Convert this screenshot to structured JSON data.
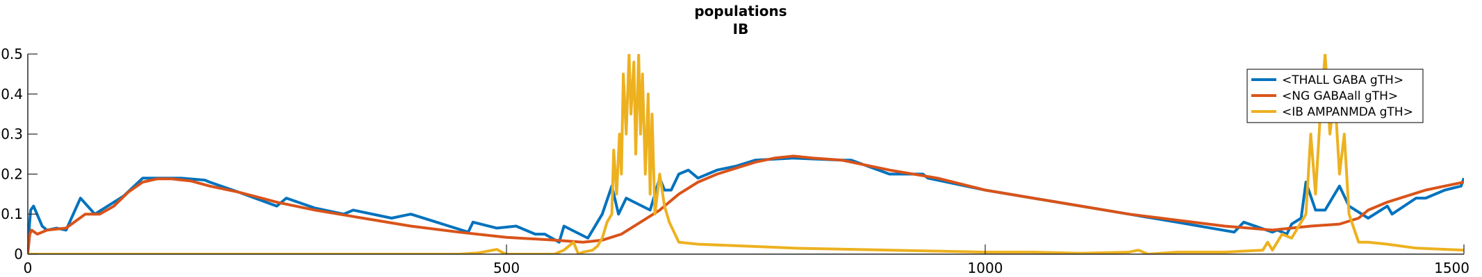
{
  "chart_data": {
    "type": "line",
    "title": "populations",
    "subtitle": "IB",
    "xlabel": "",
    "ylabel": "",
    "xlim": [
      0,
      1500
    ],
    "ylim": [
      0,
      0.5
    ],
    "x_ticks": [
      0,
      500,
      1000,
      1500
    ],
    "x_tick_labels": [
      "0",
      "500",
      "1000",
      "1500"
    ],
    "y_ticks": [
      0,
      0.1,
      0.2,
      0.3,
      0.4,
      0.5
    ],
    "y_tick_labels": [
      "0",
      "0.1",
      "0.2",
      "0.3",
      "0.4",
      "0.5"
    ],
    "grid": false,
    "legend_position": "top-right",
    "series": [
      {
        "name": "<THALL GABA gTH>",
        "color": "#0072BD",
        "x": [
          0,
          3,
          6,
          15,
          20,
          30,
          40,
          55,
          70,
          90,
          100,
          120,
          130,
          150,
          160,
          185,
          190,
          220,
          260,
          270,
          300,
          330,
          340,
          380,
          400,
          440,
          460,
          465,
          490,
          510,
          530,
          540,
          555,
          560,
          585,
          590,
          600,
          610,
          617,
          625,
          650,
          660,
          665,
          672,
          680,
          690,
          700,
          710,
          720,
          740,
          760,
          800,
          850,
          860,
          900,
          935,
          940,
          1000,
          1050,
          1100,
          1150,
          1200,
          1260,
          1270,
          1300,
          1305,
          1315,
          1320,
          1330,
          1335,
          1345,
          1355,
          1370,
          1380,
          1400,
          1420,
          1425,
          1450,
          1460,
          1480,
          1497,
          1500
        ],
        "y": [
          0.02,
          0.11,
          0.12,
          0.07,
          0.06,
          0.065,
          0.06,
          0.14,
          0.1,
          0.13,
          0.145,
          0.19,
          0.19,
          0.19,
          0.19,
          0.185,
          0.18,
          0.155,
          0.12,
          0.14,
          0.115,
          0.1,
          0.11,
          0.09,
          0.1,
          0.07,
          0.055,
          0.08,
          0.065,
          0.07,
          0.05,
          0.05,
          0.03,
          0.07,
          0.04,
          0.06,
          0.1,
          0.17,
          0.1,
          0.14,
          0.11,
          0.19,
          0.16,
          0.16,
          0.2,
          0.21,
          0.19,
          0.2,
          0.21,
          0.22,
          0.235,
          0.24,
          0.235,
          0.235,
          0.2,
          0.2,
          0.19,
          0.16,
          0.14,
          0.12,
          0.1,
          0.08,
          0.055,
          0.08,
          0.055,
          0.06,
          0.05,
          0.075,
          0.09,
          0.18,
          0.11,
          0.11,
          0.17,
          0.12,
          0.09,
          0.12,
          0.1,
          0.14,
          0.14,
          0.16,
          0.17,
          0.19
        ]
      },
      {
        "name": "<NG GABAall gTH>",
        "color": "#D95319",
        "x": [
          0,
          2,
          4,
          10,
          20,
          40,
          60,
          75,
          90,
          105,
          120,
          135,
          150,
          170,
          190,
          220,
          260,
          300,
          350,
          400,
          450,
          500,
          550,
          580,
          600,
          620,
          640,
          660,
          680,
          700,
          720,
          740,
          760,
          780,
          800,
          820,
          850,
          900,
          950,
          1000,
          1050,
          1100,
          1150,
          1200,
          1250,
          1300,
          1320,
          1340,
          1370,
          1390,
          1400,
          1420,
          1440,
          1460,
          1480,
          1500
        ],
        "y": [
          0,
          0.05,
          0.06,
          0.05,
          0.06,
          0.065,
          0.1,
          0.1,
          0.12,
          0.155,
          0.18,
          0.188,
          0.188,
          0.183,
          0.17,
          0.155,
          0.13,
          0.11,
          0.09,
          0.07,
          0.055,
          0.042,
          0.035,
          0.03,
          0.035,
          0.05,
          0.08,
          0.11,
          0.15,
          0.18,
          0.2,
          0.215,
          0.23,
          0.24,
          0.245,
          0.24,
          0.235,
          0.21,
          0.19,
          0.16,
          0.14,
          0.12,
          0.1,
          0.085,
          0.07,
          0.06,
          0.065,
          0.07,
          0.075,
          0.09,
          0.11,
          0.13,
          0.145,
          0.16,
          0.17,
          0.18
        ]
      },
      {
        "name": "<IB AMPANMDA gTH>",
        "color": "#EDB120",
        "x": [
          0,
          450,
          470,
          490,
          495,
          500,
          550,
          560,
          570,
          575,
          580,
          590,
          595,
          600,
          605,
          610,
          612,
          615,
          618,
          620,
          622,
          625,
          628,
          630,
          633,
          635,
          638,
          640,
          642,
          645,
          648,
          650,
          652,
          655,
          660,
          665,
          670,
          680,
          700,
          750,
          800,
          900,
          1000,
          1050,
          1100,
          1150,
          1160,
          1170,
          1200,
          1250,
          1290,
          1295,
          1300,
          1310,
          1320,
          1330,
          1335,
          1340,
          1345,
          1350,
          1355,
          1360,
          1365,
          1370,
          1375,
          1380,
          1390,
          1400,
          1420,
          1450,
          1500
        ],
        "y": [
          0,
          0,
          0.003,
          0.012,
          0.005,
          0,
          0,
          0.01,
          0.03,
          0,
          0.005,
          0.01,
          0.02,
          0.04,
          0.08,
          0.1,
          0.26,
          0.15,
          0.3,
          0.2,
          0.45,
          0.3,
          0.5,
          0.35,
          0.48,
          0.25,
          0.5,
          0.3,
          0.45,
          0.2,
          0.4,
          0.15,
          0.35,
          0.1,
          0.2,
          0.12,
          0.08,
          0.03,
          0.025,
          0.02,
          0.015,
          0.01,
          0.005,
          0.005,
          0.002,
          0.005,
          0.01,
          0,
          0.005,
          0.005,
          0.01,
          0.03,
          0.01,
          0.05,
          0.04,
          0.08,
          0.1,
          0.3,
          0.15,
          0.35,
          0.5,
          0.3,
          0.4,
          0.2,
          0.3,
          0.1,
          0.03,
          0.03,
          0.025,
          0.015,
          0.01
        ]
      }
    ]
  }
}
